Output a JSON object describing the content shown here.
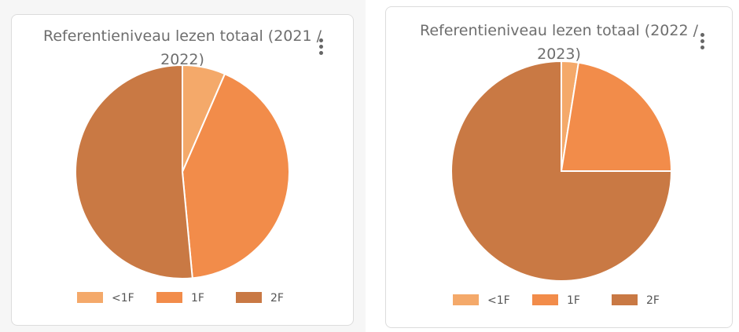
{
  "chart_data": [
    {
      "type": "pie",
      "title": "Referentieniveau lezen totaal (2021 / 2022)",
      "categories": [
        "<1F",
        "1F",
        "2F"
      ],
      "values": [
        6.5,
        42,
        51.5
      ],
      "colors": [
        "#f4a96a",
        "#f28c4a",
        "#c97944"
      ],
      "legend": "bottom"
    },
    {
      "type": "pie",
      "title": "Referentieniveau lezen totaal (2022 / 2023)",
      "categories": [
        "<1F",
        "1F",
        "2F"
      ],
      "values": [
        2.5,
        22.5,
        75
      ],
      "colors": [
        "#f4a96a",
        "#f28c4a",
        "#c97944"
      ],
      "legend": "bottom"
    }
  ]
}
